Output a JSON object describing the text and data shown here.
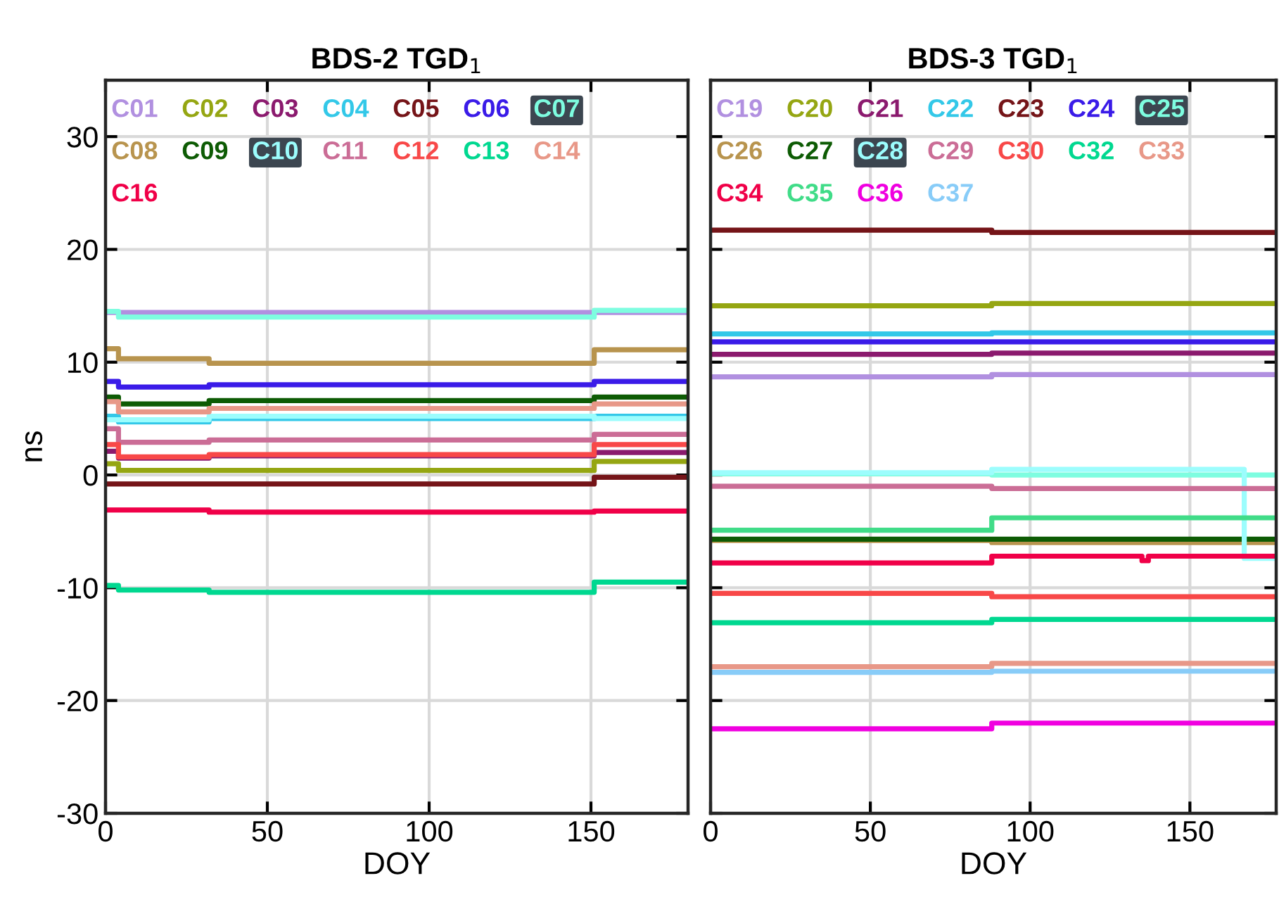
{
  "chart_data": [
    {
      "type": "step",
      "title": "BDS-2 TGD$_{1}$",
      "xlabel": "DOY",
      "ylabel": "ns",
      "xlim": [
        0,
        180
      ],
      "xticks": [
        0,
        50,
        100,
        150
      ],
      "ylim": [
        -30,
        35
      ],
      "yticks": [
        -30,
        -20,
        -10,
        0,
        10,
        20,
        30
      ],
      "grid": true,
      "legend": "top",
      "series": [
        {
          "name": "C01",
          "color": "#b190e0",
          "x": [
            0,
            4,
            32,
            151,
            180
          ],
          "values": [
            14.4,
            14.4,
            14.4,
            14.4,
            14.4
          ]
        },
        {
          "name": "C02",
          "color": "#95a612",
          "x": [
            0,
            4,
            32,
            151,
            180
          ],
          "values": [
            1.0,
            0.4,
            0.4,
            1.2,
            1.2
          ]
        },
        {
          "name": "C03",
          "color": "#8b1a6e",
          "x": [
            0,
            4,
            32,
            151,
            180
          ],
          "values": [
            2.1,
            1.5,
            1.7,
            2.0,
            2.0
          ]
        },
        {
          "name": "C04",
          "color": "#33c8e8",
          "x": [
            0,
            4,
            32,
            151,
            180
          ],
          "values": [
            5.2,
            4.7,
            5.0,
            5.2,
            5.2
          ]
        },
        {
          "name": "C05",
          "color": "#751418",
          "x": [
            0,
            4,
            32,
            151,
            180
          ],
          "values": [
            -0.8,
            -0.8,
            -0.8,
            -0.2,
            -0.2
          ]
        },
        {
          "name": "C06",
          "color": "#3a1be8",
          "x": [
            0,
            4,
            32,
            151,
            180
          ],
          "values": [
            8.3,
            7.8,
            8.0,
            8.3,
            8.3
          ]
        },
        {
          "name": "C07",
          "color": "#7efde0",
          "x": [
            0,
            4,
            32,
            151,
            180
          ],
          "values": [
            14.5,
            14.0,
            14.0,
            14.6,
            14.6
          ]
        },
        {
          "name": "C08",
          "color": "#b8944e",
          "x": [
            0,
            4,
            32,
            151,
            180
          ],
          "values": [
            11.2,
            10.3,
            9.9,
            11.1,
            11.1
          ]
        },
        {
          "name": "C09",
          "color": "#0d5b04",
          "x": [
            0,
            4,
            32,
            151,
            180
          ],
          "values": [
            6.9,
            6.3,
            6.6,
            6.9,
            6.9
          ]
        },
        {
          "name": "C10",
          "color": "#9cfdfd",
          "x": [
            0,
            4,
            32,
            151,
            180
          ],
          "values": [
            4.9,
            4.9,
            5.2,
            5.0,
            5.0
          ]
        },
        {
          "name": "C11",
          "color": "#cb6d96",
          "x": [
            0,
            4,
            32,
            151,
            180
          ],
          "values": [
            4.1,
            2.9,
            3.1,
            3.6,
            3.6
          ]
        },
        {
          "name": "C12",
          "color": "#f84848",
          "x": [
            0,
            4,
            32,
            151,
            180
          ],
          "values": [
            2.7,
            1.6,
            1.8,
            2.7,
            2.7
          ]
        },
        {
          "name": "C13",
          "color": "#00d890",
          "x": [
            0,
            4,
            32,
            151,
            180
          ],
          "values": [
            -9.8,
            -10.2,
            -10.4,
            -9.5,
            -9.5
          ]
        },
        {
          "name": "C14",
          "color": "#e89888",
          "x": [
            0,
            4,
            32,
            151,
            180
          ],
          "values": [
            6.5,
            5.6,
            5.9,
            6.3,
            6.3
          ]
        },
        {
          "name": "C16",
          "color": "#f00048",
          "x": [
            0,
            4,
            32,
            151,
            180
          ],
          "values": [
            -3.1,
            -3.1,
            -3.3,
            -3.2,
            -3.2
          ]
        }
      ]
    },
    {
      "type": "step",
      "title": "BDS-3 TGD$_{1}$",
      "xlabel": "DOY",
      "xlim": [
        0,
        177
      ],
      "xticks": [
        0,
        50,
        100,
        150
      ],
      "ylim": [
        -30,
        35
      ],
      "yticks": [
        -30,
        -20,
        -10,
        0,
        10,
        20,
        30
      ],
      "tick_labels": "x",
      "grid": true,
      "legend": "top",
      "series": [
        {
          "name": "C19",
          "color": "#b190e0",
          "x": [
            0,
            88,
            177
          ],
          "values": [
            8.7,
            8.9,
            8.9
          ]
        },
        {
          "name": "C20",
          "color": "#95a612",
          "x": [
            0,
            88,
            177
          ],
          "values": [
            15.0,
            15.2,
            15.2
          ]
        },
        {
          "name": "C21",
          "color": "#8b1a6e",
          "x": [
            0,
            88,
            177
          ],
          "values": [
            10.7,
            10.8,
            10.8
          ]
        },
        {
          "name": "C22",
          "color": "#33c8e8",
          "x": [
            0,
            88,
            177
          ],
          "values": [
            12.5,
            12.6,
            12.6
          ]
        },
        {
          "name": "C23",
          "color": "#751418",
          "x": [
            0,
            88,
            177
          ],
          "values": [
            21.7,
            21.5,
            21.5
          ]
        },
        {
          "name": "C24",
          "color": "#3a1be8",
          "x": [
            0,
            88,
            177
          ],
          "values": [
            11.8,
            11.8,
            11.8
          ]
        },
        {
          "name": "C25",
          "color": "#7efde0",
          "x": [
            0,
            88,
            177
          ],
          "values": [
            0.1,
            0.0,
            0.0
          ]
        },
        {
          "name": "C26",
          "color": "#b8944e",
          "x": [
            0,
            88,
            177
          ],
          "values": [
            -5.8,
            -6.0,
            -6.0
          ]
        },
        {
          "name": "C27",
          "color": "#0d5b04",
          "x": [
            0,
            88,
            177
          ],
          "values": [
            -5.7,
            -5.7,
            -5.7
          ]
        },
        {
          "name": "C28",
          "color": "#9cfdfd",
          "x": [
            0,
            88,
            167,
            177
          ],
          "values": [
            0.2,
            0.5,
            -7.4,
            -7.4
          ]
        },
        {
          "name": "C29",
          "color": "#cb6d96",
          "x": [
            0,
            88,
            177
          ],
          "values": [
            -1.0,
            -1.2,
            -1.2
          ]
        },
        {
          "name": "C30",
          "color": "#f84848",
          "x": [
            0,
            88,
            177
          ],
          "values": [
            -10.5,
            -10.8,
            -10.8
          ]
        },
        {
          "name": "C32",
          "color": "#00d890",
          "x": [
            0,
            88,
            177
          ],
          "values": [
            -13.1,
            -12.8,
            -12.8
          ]
        },
        {
          "name": "C33",
          "color": "#e89888",
          "x": [
            0,
            88,
            177
          ],
          "values": [
            -17.0,
            -16.7,
            -16.7
          ]
        },
        {
          "name": "C34",
          "color": "#f00048",
          "x": [
            0,
            88,
            135,
            137,
            177
          ],
          "values": [
            -7.8,
            -7.2,
            -7.6,
            -7.2,
            -7.2
          ]
        },
        {
          "name": "C35",
          "color": "#40dc88",
          "x": [
            0,
            88,
            177
          ],
          "values": [
            -4.9,
            -3.8,
            -3.8
          ]
        },
        {
          "name": "C36",
          "color": "#f000e0",
          "x": [
            0,
            88,
            177
          ],
          "values": [
            -22.5,
            -22.0,
            -22.0
          ]
        },
        {
          "name": "C37",
          "color": "#88ccf8",
          "x": [
            0,
            88,
            177
          ],
          "values": [
            -17.5,
            -17.4,
            -17.4
          ]
        }
      ]
    }
  ]
}
